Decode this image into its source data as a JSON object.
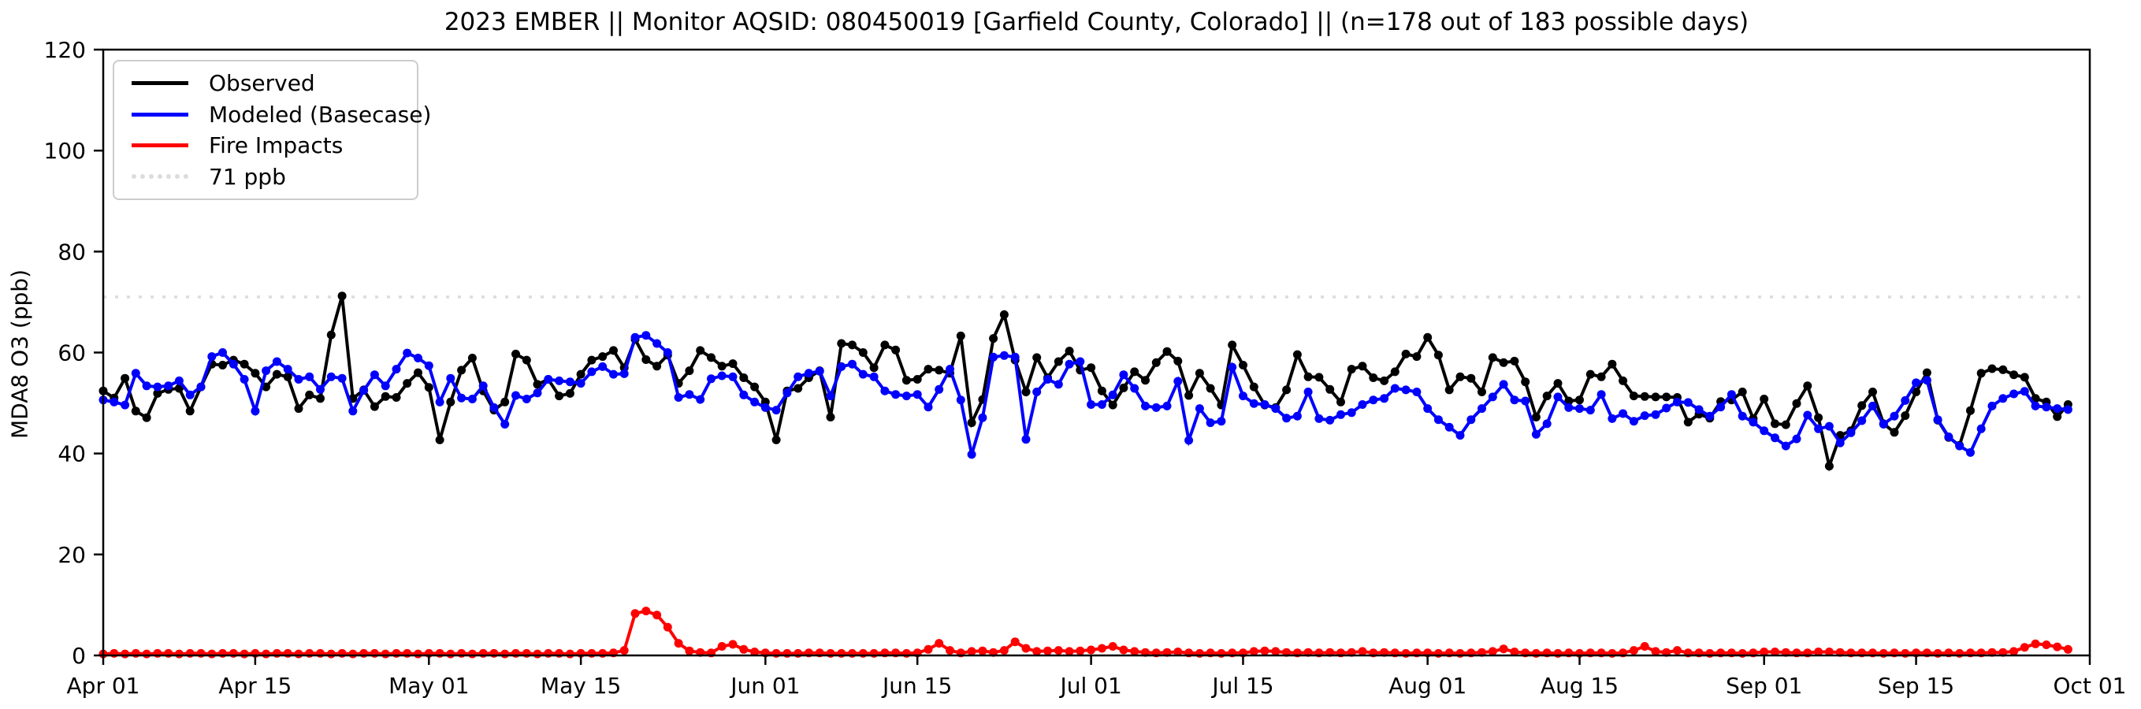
{
  "title": "2023 EMBER || Monitor AQSID: 080450019 [Garfield County, Colorado] || (n=178 out of 183 possible days)",
  "axes": {
    "ylabel": "MDA8 O3 (ppb)",
    "ylim": [
      0,
      120
    ],
    "yticks": [
      0,
      20,
      40,
      60,
      80,
      100,
      120
    ],
    "xlim_days": [
      0,
      183
    ],
    "xticks": [
      {
        "day": 0,
        "label": "Apr 01"
      },
      {
        "day": 14,
        "label": "Apr 15"
      },
      {
        "day": 30,
        "label": "May 01"
      },
      {
        "day": 44,
        "label": "May 15"
      },
      {
        "day": 61,
        "label": "Jun 01"
      },
      {
        "day": 75,
        "label": "Jun 15"
      },
      {
        "day": 91,
        "label": "Jul 01"
      },
      {
        "day": 105,
        "label": "Jul 15"
      },
      {
        "day": 122,
        "label": "Aug 01"
      },
      {
        "day": 136,
        "label": "Aug 15"
      },
      {
        "day": 153,
        "label": "Sep 01"
      },
      {
        "day": 167,
        "label": "Sep 15"
      },
      {
        "day": 183,
        "label": "Oct 01"
      }
    ],
    "grid": false
  },
  "legend": {
    "position": "upper-left",
    "items": [
      {
        "label": "Observed",
        "color": "#000000",
        "style": "solid"
      },
      {
        "label": "Modeled (Basecase)",
        "color": "#0000ff",
        "style": "solid"
      },
      {
        "label": "Fire Impacts",
        "color": "#ff0000",
        "style": "solid"
      },
      {
        "label": "71 ppb",
        "color": "#dcdcdc",
        "style": "dotted"
      }
    ]
  },
  "chart_data": {
    "type": "line",
    "x_unit": "days since Apr 01 (daily values, Apr 01 - Sep 29)",
    "x_start_day": 0,
    "marker": "circle",
    "threshold": {
      "value": 71,
      "label": "71 ppb",
      "color": "#dcdcdc",
      "linestyle": "dotted"
    },
    "series": [
      {
        "name": "Observed",
        "color": "#000000",
        "values": [
          52.4,
          51.0,
          54.9,
          48.4,
          47.1,
          51.9,
          52.7,
          52.9,
          48.4,
          53.2,
          57.7,
          57.5,
          58.5,
          57.7,
          55.9,
          53.2,
          55.7,
          55.2,
          48.9,
          51.6,
          50.9,
          63.5,
          71.2,
          50.9,
          52.6,
          49.3,
          51.3,
          51.1,
          53.9,
          56.0,
          53.1,
          42.7,
          50.2,
          56.5,
          58.9,
          52.4,
          48.6,
          50.2,
          59.7,
          58.5,
          53.7,
          54.7,
          51.4,
          51.9,
          55.7,
          58.5,
          59.2,
          60.4,
          57.0,
          62.6,
          58.6,
          57.3,
          59.5,
          53.9,
          56.4,
          60.4,
          59.0,
          57.3,
          57.8,
          55.0,
          53.2,
          50.2,
          42.7,
          52.4,
          52.9,
          55.0,
          56.4,
          47.2,
          61.8,
          61.5,
          60.0,
          57.0,
          61.5,
          60.5,
          54.5,
          54.7,
          56.7,
          56.5,
          55.9,
          63.3,
          46.1,
          50.7,
          62.8,
          67.5,
          58.5,
          52.2,
          59.0,
          55.0,
          58.2,
          60.3,
          56.5,
          57.0,
          52.4,
          49.6,
          53.0,
          56.2,
          54.5,
          58.0,
          60.2,
          58.3,
          51.5,
          55.9,
          52.9,
          49.6,
          61.5,
          57.5,
          53.2,
          49.6,
          49.1,
          52.6,
          59.6,
          55.2,
          55.1,
          52.7,
          50.2,
          56.7,
          57.3,
          55.0,
          54.4,
          56.2,
          59.7,
          59.2,
          63.0,
          59.5,
          52.6,
          55.2,
          54.9,
          52.2,
          59.0,
          58.0,
          58.3,
          54.2,
          47.2,
          51.4,
          53.9,
          50.4,
          50.6,
          55.7,
          55.2,
          57.7,
          54.4,
          51.4,
          51.3,
          51.2,
          51.2,
          51.1,
          46.2,
          47.8,
          47.0,
          50.3,
          50.6,
          52.2,
          46.9,
          50.8,
          45.9,
          45.7,
          49.9,
          53.4,
          47.1,
          37.5,
          43.6,
          44.5,
          49.5,
          52.2,
          45.9,
          44.2,
          47.5,
          52.2,
          56.0,
          46.6,
          43.2,
          41.6,
          48.5,
          55.9,
          56.8,
          56.6,
          55.6,
          55.1,
          50.9,
          50.2,
          47.3,
          49.7
        ]
      },
      {
        "name": "Modeled (Basecase)",
        "color": "#0000ff",
        "values": [
          50.6,
          50.2,
          49.6,
          55.9,
          53.4,
          53.2,
          53.4,
          54.4,
          51.6,
          53.2,
          59.2,
          60.0,
          57.7,
          54.7,
          48.4,
          56.4,
          58.2,
          56.7,
          54.7,
          55.2,
          52.7,
          55.2,
          54.9,
          48.4,
          52.5,
          55.6,
          53.4,
          56.7,
          59.9,
          58.9,
          57.4,
          50.2,
          54.9,
          51.0,
          50.8,
          53.4,
          49.1,
          45.8,
          51.5,
          50.8,
          52.0,
          54.7,
          54.4,
          54.2,
          53.9,
          56.2,
          57.2,
          55.7,
          55.8,
          63.0,
          63.4,
          61.8,
          60.0,
          51.1,
          51.7,
          50.7,
          54.8,
          55.4,
          55.2,
          51.6,
          50.2,
          49.1,
          48.6,
          52.0,
          55.2,
          55.9,
          56.3,
          51.4,
          57.2,
          57.7,
          55.7,
          55.2,
          52.4,
          51.7,
          51.4,
          51.7,
          49.2,
          52.7,
          56.7,
          50.6,
          39.8,
          47.1,
          59.1,
          59.4,
          59.1,
          42.8,
          52.2,
          54.7,
          53.7,
          57.7,
          58.2,
          49.7,
          49.7,
          51.6,
          55.6,
          52.9,
          49.4,
          49.1,
          49.4,
          54.3,
          42.6,
          48.9,
          46.1,
          46.4,
          57.1,
          51.4,
          49.9,
          49.7,
          48.9,
          47.0,
          47.4,
          52.2,
          46.9,
          46.6,
          47.7,
          48.1,
          49.7,
          50.6,
          50.9,
          52.9,
          52.6,
          52.2,
          48.9,
          46.7,
          45.2,
          43.6,
          46.7,
          48.9,
          51.2,
          53.7,
          50.6,
          50.4,
          43.8,
          45.9,
          51.2,
          49.1,
          48.9,
          48.6,
          51.7,
          46.9,
          47.9,
          46.4,
          47.5,
          47.7,
          49.0,
          50.2,
          50.1,
          48.7,
          47.4,
          49.2,
          51.7,
          47.4,
          46.2,
          44.5,
          43.1,
          41.5,
          42.9,
          47.6,
          44.9,
          45.4,
          42.1,
          44.1,
          46.5,
          49.4,
          45.8,
          47.4,
          50.5,
          54.0,
          54.5,
          46.7,
          43.3,
          41.5,
          40.2,
          44.9,
          49.4,
          50.9,
          51.8,
          52.3,
          49.4,
          49.2,
          48.9,
          48.7
        ]
      },
      {
        "name": "Fire Impacts",
        "color": "#ff0000",
        "values": [
          0.3,
          0.4,
          0.3,
          0.4,
          0.3,
          0.4,
          0.4,
          0.3,
          0.4,
          0.4,
          0.3,
          0.4,
          0.4,
          0.3,
          0.4,
          0.3,
          0.4,
          0.4,
          0.3,
          0.4,
          0.4,
          0.3,
          0.4,
          0.3,
          0.4,
          0.4,
          0.3,
          0.4,
          0.4,
          0.3,
          0.4,
          0.4,
          0.3,
          0.4,
          0.3,
          0.4,
          0.4,
          0.3,
          0.4,
          0.4,
          0.3,
          0.4,
          0.4,
          0.3,
          0.4,
          0.4,
          0.4,
          0.5,
          1.0,
          8.3,
          8.8,
          8.0,
          5.6,
          2.4,
          0.9,
          0.6,
          0.5,
          1.8,
          2.2,
          1.2,
          0.7,
          0.5,
          0.4,
          0.4,
          0.4,
          0.5,
          0.5,
          0.4,
          0.4,
          0.4,
          0.4,
          0.4,
          0.5,
          0.5,
          0.4,
          0.5,
          1.2,
          2.4,
          1.0,
          0.5,
          0.8,
          0.9,
          0.6,
          1.0,
          2.7,
          1.4,
          0.8,
          0.9,
          1.0,
          0.8,
          0.9,
          1.1,
          1.4,
          1.8,
          1.1,
          0.8,
          0.6,
          0.5,
          0.6,
          0.7,
          0.5,
          0.4,
          0.5,
          0.4,
          0.5,
          0.5,
          0.8,
          0.9,
          0.8,
          0.6,
          0.5,
          0.6,
          0.5,
          0.6,
          0.5,
          0.6,
          0.8,
          0.5,
          0.6,
          0.5,
          0.4,
          0.5,
          0.5,
          0.4,
          0.5,
          0.4,
          0.5,
          0.6,
          0.8,
          1.3,
          0.7,
          0.5,
          0.4,
          0.5,
          0.4,
          0.5,
          0.4,
          0.5,
          0.5,
          0.4,
          0.5,
          1.0,
          1.8,
          0.8,
          0.6,
          1.0,
          0.5,
          0.5,
          0.4,
          0.5,
          0.5,
          0.4,
          0.5,
          0.7,
          0.7,
          0.6,
          0.5,
          0.5,
          0.7,
          0.7,
          0.6,
          0.5,
          0.5,
          0.5,
          0.4,
          0.5,
          0.4,
          0.5,
          0.5,
          0.4,
          0.5,
          0.4,
          0.5,
          0.5,
          0.6,
          0.6,
          0.8,
          1.6,
          2.3,
          2.1,
          1.7,
          1.2
        ]
      }
    ]
  }
}
